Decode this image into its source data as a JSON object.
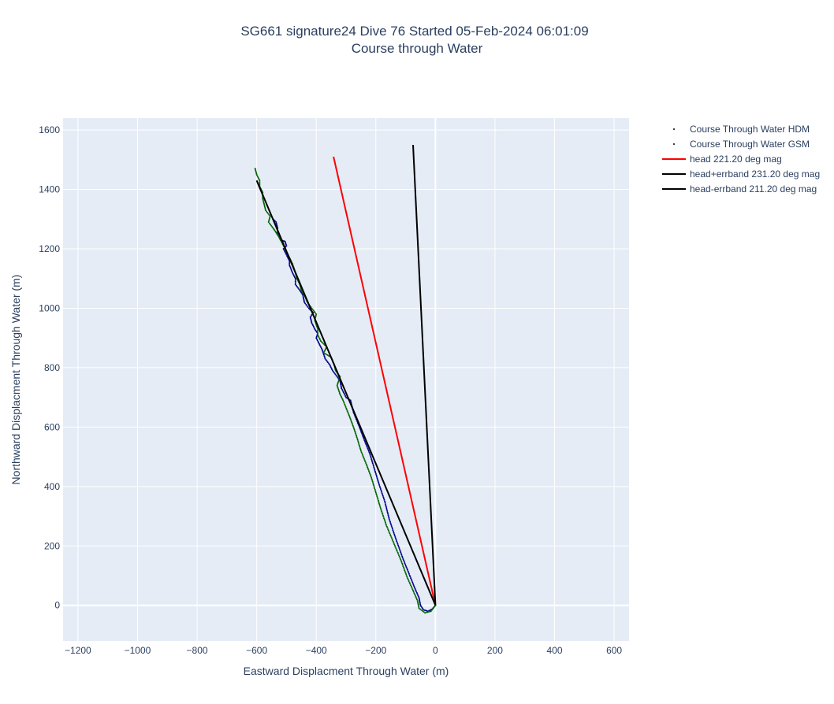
{
  "chart_data": {
    "type": "line",
    "title_line1": "SG661 signature24 Dive 76 Started 05-Feb-2024 06:01:09",
    "title_line2": "Course through Water",
    "xlabel": "Eastward Displacment Through Water (m)",
    "ylabel": "Northward Displacment Through Water (m)",
    "xlim": [
      -1250,
      650
    ],
    "ylim": [
      -120,
      1640
    ],
    "xticks": [
      -1200,
      -1000,
      -800,
      -600,
      -400,
      -200,
      0,
      200,
      400,
      600
    ],
    "yticks": [
      0,
      200,
      400,
      600,
      800,
      1000,
      1200,
      1400,
      1600
    ],
    "grid": true,
    "legend_position": "top-right",
    "series": [
      {
        "name": "Course Through Water HDM",
        "mode": "markers",
        "color": "#00008b",
        "points": [
          [
            0,
            0
          ],
          [
            -10,
            -12
          ],
          [
            -25,
            -20
          ],
          [
            -40,
            -15
          ],
          [
            -50,
            0
          ],
          [
            -55,
            25
          ],
          [
            -70,
            60
          ],
          [
            -90,
            110
          ],
          [
            -110,
            160
          ],
          [
            -135,
            230
          ],
          [
            -155,
            290
          ],
          [
            -170,
            350
          ],
          [
            -190,
            410
          ],
          [
            -205,
            460
          ],
          [
            -220,
            510
          ],
          [
            -240,
            560
          ],
          [
            -255,
            600
          ],
          [
            -275,
            650
          ],
          [
            -285,
            690
          ],
          [
            -300,
            700
          ],
          [
            -315,
            730
          ],
          [
            -320,
            755
          ],
          [
            -330,
            770
          ],
          [
            -345,
            790
          ],
          [
            -355,
            810
          ],
          [
            -370,
            830
          ],
          [
            -380,
            860
          ],
          [
            -390,
            880
          ],
          [
            -400,
            900
          ],
          [
            -395,
            915
          ],
          [
            -405,
            930
          ],
          [
            -415,
            950
          ],
          [
            -420,
            970
          ],
          [
            -410,
            985
          ],
          [
            -425,
            1000
          ],
          [
            -440,
            1020
          ],
          [
            -445,
            1045
          ],
          [
            -455,
            1060
          ],
          [
            -470,
            1080
          ],
          [
            -470,
            1100
          ],
          [
            -480,
            1120
          ],
          [
            -490,
            1145
          ],
          [
            -490,
            1160
          ],
          [
            -500,
            1180
          ],
          [
            -510,
            1200
          ],
          [
            -500,
            1210
          ],
          [
            -505,
            1225
          ],
          [
            -520,
            1230
          ],
          [
            -530,
            1250
          ],
          [
            -530,
            1270
          ],
          [
            -535,
            1290
          ],
          [
            -545,
            1300
          ]
        ]
      },
      {
        "name": "Course Through Water GSM",
        "mode": "markers",
        "color": "#006400",
        "points": [
          [
            0,
            0
          ],
          [
            -15,
            -20
          ],
          [
            -35,
            -25
          ],
          [
            -55,
            -10
          ],
          [
            -60,
            15
          ],
          [
            -75,
            50
          ],
          [
            -95,
            95
          ],
          [
            -115,
            150
          ],
          [
            -140,
            210
          ],
          [
            -165,
            270
          ],
          [
            -185,
            330
          ],
          [
            -200,
            380
          ],
          [
            -215,
            430
          ],
          [
            -230,
            470
          ],
          [
            -250,
            520
          ],
          [
            -265,
            570
          ],
          [
            -275,
            600
          ],
          [
            -290,
            640
          ],
          [
            -310,
            690
          ],
          [
            -320,
            710
          ],
          [
            -330,
            740
          ],
          [
            -320,
            770
          ],
          [
            -335,
            790
          ],
          [
            -340,
            810
          ],
          [
            -350,
            835
          ],
          [
            -375,
            850
          ],
          [
            -365,
            870
          ],
          [
            -385,
            890
          ],
          [
            -395,
            910
          ],
          [
            -395,
            930
          ],
          [
            -405,
            960
          ],
          [
            -400,
            980
          ],
          [
            -415,
            1000
          ],
          [
            -430,
            1020
          ],
          [
            -440,
            1045
          ],
          [
            -450,
            1060
          ],
          [
            -455,
            1080
          ],
          [
            -465,
            1100
          ],
          [
            -470,
            1120
          ],
          [
            -480,
            1150
          ],
          [
            -490,
            1170
          ],
          [
            -500,
            1190
          ],
          [
            -515,
            1220
          ],
          [
            -525,
            1240
          ],
          [
            -545,
            1270
          ],
          [
            -560,
            1290
          ],
          [
            -555,
            1310
          ],
          [
            -570,
            1330
          ],
          [
            -575,
            1350
          ],
          [
            -580,
            1370
          ],
          [
            -580,
            1390
          ],
          [
            -590,
            1410
          ],
          [
            -590,
            1430
          ],
          [
            -600,
            1450
          ],
          [
            -605,
            1470
          ]
        ]
      },
      {
        "name": "head 221.20 deg mag",
        "mode": "lines",
        "color": "#ff0000",
        "x": [
          0,
          -342
        ],
        "y": [
          0,
          1510
        ]
      },
      {
        "name": "head+errband 231.20 deg mag",
        "mode": "lines",
        "color": "#000000",
        "x": [
          0,
          -600
        ],
        "y": [
          0,
          1430
        ]
      },
      {
        "name": "head-errband 211.20 deg mag",
        "mode": "lines",
        "color": "#000000",
        "x": [
          0,
          -75
        ],
        "y": [
          0,
          1550
        ]
      }
    ]
  }
}
